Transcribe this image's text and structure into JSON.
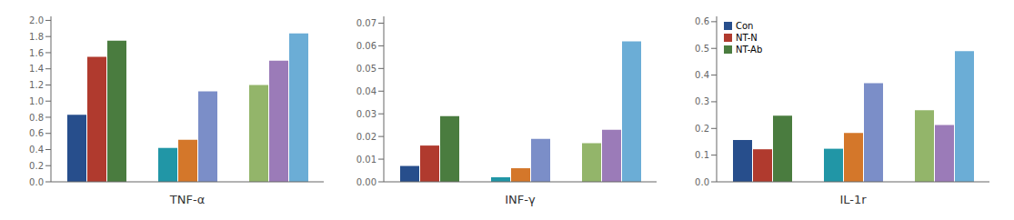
{
  "chart_data": [
    {
      "type": "bar",
      "xlabel": "TNF-α",
      "categories": [
        null,
        null,
        null
      ],
      "series": [
        {
          "name": "Con",
          "colors": [
            "#274E8C",
            "#2196A6",
            "#93B56A"
          ],
          "values": [
            0.83,
            0.42,
            1.2
          ]
        },
        {
          "name": "NT-N",
          "colors": [
            "#B03A2E",
            "#D4772A",
            "#9B7BB8"
          ],
          "values": [
            1.55,
            0.52,
            1.5
          ]
        },
        {
          "name": "NT-Ab",
          "colors": [
            "#4A7C3F",
            "#7B8EC8",
            "#6BADD6"
          ],
          "values": [
            1.75,
            1.12,
            1.84
          ]
        }
      ],
      "ylim": [
        0,
        2.05
      ],
      "yticks": [
        {
          "value": 0,
          "label": "0.0"
        },
        0.2,
        0.4,
        0.6,
        0.8,
        {
          "value": 1.0,
          "label": "1.0"
        },
        1.2,
        1.4,
        1.6,
        1.8,
        {
          "value": 2.0,
          "label": "2.0"
        }
      ],
      "grid": false,
      "tick_labels": "y"
    },
    {
      "type": "bar",
      "xlabel": "INF-γ",
      "categories": [
        null,
        null,
        null
      ],
      "series": [
        {
          "name": "Con",
          "colors": [
            "#274E8C",
            "#2196A6",
            "#93B56A"
          ],
          "values": [
            0.007,
            0.002,
            0.017
          ]
        },
        {
          "name": "NT-N",
          "colors": [
            "#B03A2E",
            "#D4772A",
            "#9B7BB8"
          ],
          "values": [
            0.016,
            0.006,
            0.023
          ]
        },
        {
          "name": "NT-Ab",
          "colors": [
            "#4A7C3F",
            "#7B8EC8",
            "#6BADD6"
          ],
          "values": [
            0.029,
            0.019,
            0.062
          ]
        }
      ],
      "ylim": [
        0,
        0.073
      ],
      "yticks": [
        {
          "value": 0,
          "label": "0.00"
        },
        {
          "value": 0.01,
          "label": "0.01"
        },
        {
          "value": 0.02,
          "label": "0.02"
        },
        {
          "value": 0.03,
          "label": "0.03"
        },
        {
          "value": 0.04,
          "label": "0.04"
        },
        {
          "value": 0.05,
          "label": "0.05"
        },
        {
          "value": 0.06,
          "label": "0.06"
        },
        {
          "value": 0.07,
          "label": "0.07"
        }
      ],
      "grid": false,
      "tick_labels": "y"
    },
    {
      "type": "bar",
      "xlabel": "IL-1r",
      "categories": [
        null,
        null,
        null
      ],
      "series": [
        {
          "name": "Con",
          "colors": [
            "#274E8C",
            "#2196A6",
            "#93B56A"
          ],
          "values": [
            0.157,
            0.124,
            0.268
          ]
        },
        {
          "name": "NT-N",
          "colors": [
            "#B03A2E",
            "#D4772A",
            "#9B7BB8"
          ],
          "values": [
            0.122,
            0.183,
            0.213
          ]
        },
        {
          "name": "NT-Ab",
          "colors": [
            "#4A7C3F",
            "#7B8EC8",
            "#6BADD6"
          ],
          "values": [
            0.248,
            0.37,
            0.49
          ]
        }
      ],
      "ylim": [
        0,
        0.62
      ],
      "yticks": [
        {
          "value": 0,
          "label": "0.0"
        },
        0.1,
        0.2,
        0.3,
        0.4,
        0.5,
        0.6
      ],
      "grid": false,
      "tick_labels": "y",
      "legend": "upper left"
    }
  ]
}
